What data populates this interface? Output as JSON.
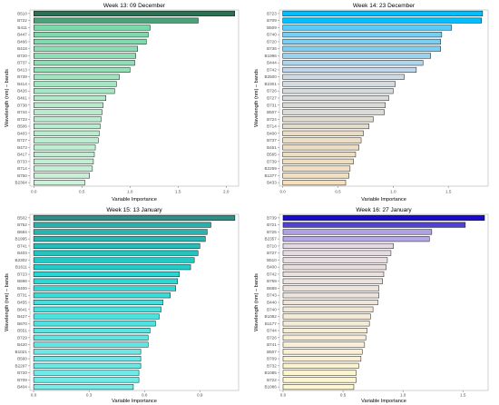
{
  "chart_data": [
    {
      "type": "bar",
      "orientation": "horizontal",
      "title": "Week 13: 09 December",
      "xlabel": "Variable Importance",
      "ylabel": "Wavelength (nm) – bands",
      "categories": [
        "B510",
        "B722",
        "B411",
        "B447",
        "B466",
        "B418",
        "B720",
        "B737",
        "B413",
        "B739",
        "B414",
        "B426",
        "B461",
        "B738",
        "B744",
        "B723",
        "B506",
        "B403",
        "B727",
        "B473",
        "B417",
        "B733",
        "B714",
        "B750",
        "B2364"
      ],
      "values": [
        2.09,
        1.71,
        1.21,
        1.19,
        1.17,
        1.08,
        1.06,
        1.05,
        1.0,
        0.89,
        0.86,
        0.84,
        0.75,
        0.72,
        0.71,
        0.7,
        0.69,
        0.68,
        0.67,
        0.64,
        0.63,
        0.62,
        0.61,
        0.58,
        0.53
      ],
      "xlim": [
        -0.04,
        2.13
      ],
      "xtick_labels": [
        "0.0",
        "0.5",
        "1.0",
        "1.5",
        "2.0"
      ],
      "grid": false,
      "legend": "none",
      "fill_scale": {
        "low": "#cdf2da",
        "mid": "#6ed5a2",
        "high": "#2d6f53"
      },
      "bar_outline": "#000000"
    },
    {
      "type": "bar",
      "orientation": "horizontal",
      "title": "Week 14: 23 December",
      "xlabel": "Variable Importance",
      "ylabel": "Wavelength (nm) – bands",
      "categories": [
        "B723",
        "B709",
        "B509",
        "B740",
        "B720",
        "B736",
        "B1996",
        "B444",
        "B742",
        "B2500",
        "B2301",
        "B726",
        "B727",
        "B731",
        "B507",
        "B724",
        "B714",
        "B400",
        "B737",
        "B451",
        "B565",
        "B739",
        "B2269",
        "B1377",
        "B433"
      ],
      "values": [
        1.81,
        1.8,
        1.53,
        1.44,
        1.43,
        1.43,
        1.34,
        1.27,
        1.21,
        1.1,
        1.02,
        1.0,
        0.96,
        0.93,
        0.92,
        0.82,
        0.78,
        0.73,
        0.71,
        0.69,
        0.66,
        0.64,
        0.61,
        0.6,
        0.57
      ],
      "xlim": [
        -0.03,
        1.86
      ],
      "xtick_labels": [
        "0.0",
        "0.5",
        "1.0",
        "1.5"
      ],
      "grid": false,
      "legend": "none",
      "fill_scale": {
        "low": "#f5dfbc",
        "mid": "#c7d8ea",
        "high": "#00bfff"
      },
      "bar_outline": "#000000"
    },
    {
      "type": "bar",
      "orientation": "horizontal",
      "title": "Week 15: 13 January",
      "xlabel": "Variable Importance",
      "ylabel": "Wavelength (nm) – bands",
      "categories": [
        "B502",
        "B752",
        "B684",
        "B1995",
        "B741",
        "B403",
        "B2302",
        "B1611",
        "B723",
        "B696",
        "B400",
        "B731",
        "B455",
        "B641",
        "B427",
        "B670",
        "B551",
        "B729",
        "B420",
        "B1021",
        "B560",
        "B2297",
        "B720",
        "B709",
        "B404"
      ],
      "values": [
        1.09,
        0.96,
        0.94,
        0.93,
        0.9,
        0.89,
        0.87,
        0.85,
        0.79,
        0.78,
        0.77,
        0.74,
        0.7,
        0.69,
        0.68,
        0.66,
        0.63,
        0.62,
        0.62,
        0.58,
        0.58,
        0.58,
        0.57,
        0.57,
        0.54
      ],
      "xlim": [
        -0.02,
        1.11
      ],
      "xtick_labels": [
        "0.0",
        "0.3",
        "0.6",
        "0.9"
      ],
      "grid": false,
      "legend": "none",
      "fill_scale": {
        "low": "#79ecea",
        "mid": "#1ed6d3",
        "high": "#2f8f86"
      },
      "bar_outline": "#000000"
    },
    {
      "type": "bar",
      "orientation": "horizontal",
      "title": "Week 16: 27 January",
      "xlabel": "Variable Importance",
      "ylabel": "Wavelength (nm) – bands",
      "categories": [
        "B739",
        "B721",
        "B725",
        "B2357",
        "B710",
        "B727",
        "B510",
        "B400",
        "B742",
        "B759",
        "B689",
        "B743",
        "B440",
        "B740",
        "B1082",
        "B1177",
        "B744",
        "B726",
        "B741",
        "B507",
        "B709",
        "B732",
        "B1085",
        "B722",
        "B1086"
      ],
      "values": [
        1.68,
        1.52,
        1.24,
        1.22,
        0.92,
        0.9,
        0.87,
        0.86,
        0.84,
        0.83,
        0.8,
        0.8,
        0.79,
        0.75,
        0.73,
        0.72,
        0.7,
        0.69,
        0.68,
        0.66,
        0.65,
        0.63,
        0.61,
        0.61,
        0.59
      ],
      "xlim": [
        -0.03,
        1.71
      ],
      "xtick_labels": [
        "0.0",
        "0.5",
        "1.0",
        "1.5"
      ],
      "grid": false,
      "legend": "none",
      "fill_scale": {
        "low": "#fff7cf",
        "mid": "#d2c4ee",
        "high": "#1a0acc"
      },
      "bar_outline": "#000000"
    }
  ]
}
